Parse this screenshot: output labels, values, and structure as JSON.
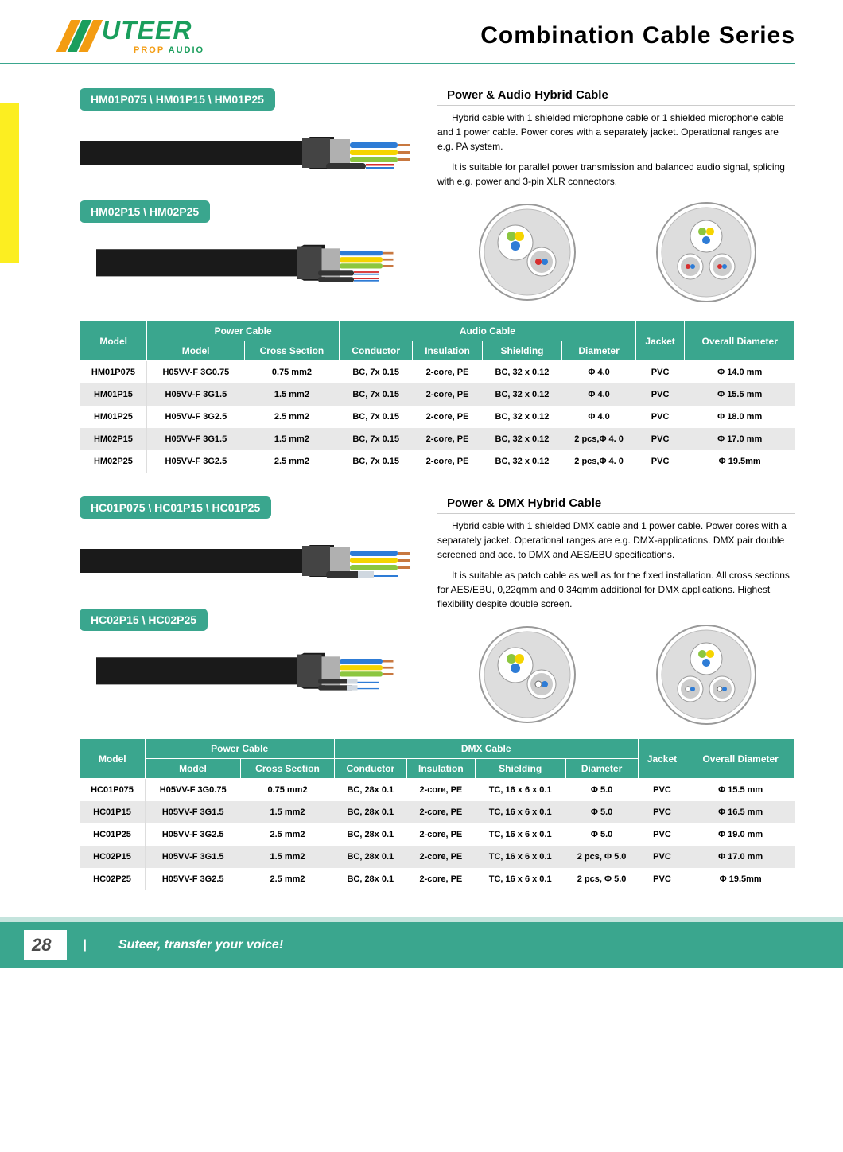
{
  "brand": {
    "name": "UTEER",
    "tagline_a": "PROP",
    "tagline_b": " AUDIO"
  },
  "page_title": "Combination Cable  Series",
  "colors": {
    "teal": "#3aa68e",
    "orange": "#f39c12",
    "green_logo": "#1a9e5c",
    "yellow": "#fcee21",
    "cable_black": "#1a1a1a",
    "copper": "#c87840",
    "wire_blue": "#2e7cd6",
    "wire_yellow": "#f5d400",
    "wire_greenyellow": "#8cc63f",
    "wire_red": "#d62e2e",
    "shield_grey": "#b0b0b0"
  },
  "section1": {
    "tab1": "HM01P075 \\ HM01P15 \\ HM01P25",
    "tab2": "HM02P15 \\ HM02P25",
    "title": "Power  &  Audio  Hybrid  Cable",
    "para1": "Hybrid cable with 1 shielded microphone cable  or 1 shielded microphone cable and 1 power cable. Power cores with a separately jacket. Operational ranges are e.g. PA system.",
    "para2": "It is suitable for parallel power transmission and balanced audio signal, splicing with e.g. power and 3-pin XLR connectors."
  },
  "table1": {
    "group_headers": [
      "Model",
      "Power Cable",
      "Audio  Cable",
      "Jacket",
      "Overall Diameter"
    ],
    "sub_headers": [
      "Model",
      "Cross Section",
      "Conductor",
      "Insulation",
      "Shielding",
      "Diameter"
    ],
    "rows": [
      [
        "HM01P075",
        "H05VV-F 3G0.75",
        "0.75 mm2",
        "BC, 7x 0.15",
        "2-core, PE",
        "BC, 32 x 0.12",
        "Φ 4.0",
        "PVC",
        "Φ 14.0 mm"
      ],
      [
        "HM01P15",
        "H05VV-F 3G1.5",
        "1.5 mm2",
        "BC, 7x 0.15",
        "2-core, PE",
        "BC, 32 x 0.12",
        "Φ 4.0",
        "PVC",
        "Φ 15.5 mm"
      ],
      [
        "HM01P25",
        "H05VV-F 3G2.5",
        "2.5 mm2",
        "BC, 7x 0.15",
        "2-core, PE",
        "BC, 32 x 0.12",
        "Φ 4.0",
        "PVC",
        "Φ 18.0 mm"
      ],
      [
        "HM02P15",
        "H05VV-F 3G1.5",
        "1.5 mm2",
        "BC, 7x 0.15",
        "2-core, PE",
        "BC, 32 x 0.12",
        "2 pcs,Φ 4. 0",
        "PVC",
        "Φ 17.0 mm"
      ],
      [
        "HM02P25",
        "H05VV-F 3G2.5",
        "2.5 mm2",
        "BC, 7x 0.15",
        "2-core, PE",
        "BC, 32 x 0.12",
        "2 pcs,Φ 4. 0",
        "PVC",
        "Φ 19.5mm"
      ]
    ]
  },
  "section2": {
    "tab1": "HC01P075 \\ HC01P15 \\ HC01P25",
    "tab2": "HC02P15 \\ HC02P25",
    "title": "Power  &  DMX  Hybrid  Cable",
    "para1": "Hybrid cable with 1 shielded DMX cable and 1 power cable. Power cores with a separately jacket. Operational ranges are e.g. DMX-applications. DMX pair double screened and acc. to DMX and AES/EBU specifications.",
    "para2": "It is suitable as patch cable as well as for the fixed installation. All cross sections for AES/EBU, 0,22qmm and 0,34qmm additional for DMX applications. Highest flexibility despite double screen."
  },
  "table2": {
    "group_headers": [
      "Model",
      "Power Cable",
      "DMX  Cable",
      "Jacket",
      "Overall Diameter"
    ],
    "sub_headers": [
      "Model",
      "Cross Section",
      "Conductor",
      "Insulation",
      "Shielding",
      "Diameter"
    ],
    "rows": [
      [
        "HC01P075",
        "H05VV-F 3G0.75",
        "0.75 mm2",
        "BC, 28x 0.1",
        "2-core, PE",
        "TC, 16 x 6 x 0.1",
        "Φ 5.0",
        "PVC",
        "Φ 15.5 mm"
      ],
      [
        "HC01P15",
        "H05VV-F 3G1.5",
        "1.5 mm2",
        "BC, 28x 0.1",
        "2-core, PE",
        "TC, 16 x 6 x 0.1",
        "Φ 5.0",
        "PVC",
        "Φ 16.5 mm"
      ],
      [
        "HC01P25",
        "H05VV-F 3G2.5",
        "2.5 mm2",
        "BC, 28x 0.1",
        "2-core, PE",
        "TC, 16 x 6 x 0.1",
        "Φ 5.0",
        "PVC",
        "Φ 19.0 mm"
      ],
      [
        "HC02P15",
        "H05VV-F 3G1.5",
        "1.5 mm2",
        "BC, 28x 0.1",
        "2-core, PE",
        "TC, 16 x 6 x 0.1",
        "2 pcs, Φ 5.0",
        "PVC",
        "Φ 17.0 mm"
      ],
      [
        "HC02P25",
        "H05VV-F 3G2.5",
        "2.5 mm2",
        "BC, 28x 0.1",
        "2-core, PE",
        "TC, 16 x 6 x 0.1",
        "2 pcs, Φ 5.0",
        "PVC",
        "Φ 19.5mm"
      ]
    ]
  },
  "footer": {
    "page": "28",
    "slogan": "Suteer, transfer your voice!"
  }
}
